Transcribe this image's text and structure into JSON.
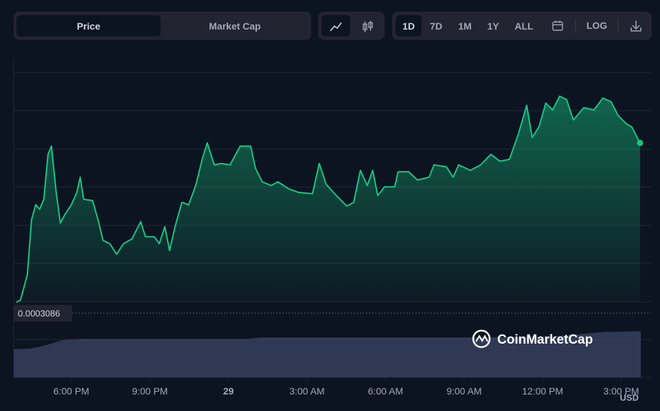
{
  "toolbar": {
    "tabs": [
      "Price",
      "Market Cap"
    ],
    "ranges": [
      "1D",
      "7D",
      "1M",
      "1Y",
      "ALL"
    ],
    "log_button": "LOG"
  },
  "chart_data": {
    "type": "line",
    "color": "#16c784",
    "x": [
      15.9,
      16.06,
      16.32,
      16.48,
      16.64,
      16.79,
      16.95,
      17.11,
      17.24,
      17.42,
      17.58,
      17.76,
      18.0,
      18.21,
      18.34,
      18.47,
      18.81,
      19.02,
      19.21,
      19.47,
      19.73,
      19.99,
      20.31,
      20.65,
      20.83,
      21.17,
      21.36,
      21.57,
      21.75,
      21.96,
      22.22,
      22.48,
      22.75,
      23.01,
      23.19,
      23.46,
      23.72,
      24.06,
      24.45,
      24.85,
      25.03,
      25.29,
      25.63,
      25.89,
      26.29,
      26.68,
      27.21,
      27.47,
      27.73,
      28.12,
      28.52,
      28.78,
      29.04,
      29.3,
      29.51,
      29.7,
      29.96,
      30.35,
      30.48,
      30.88,
      31.22,
      31.66,
      31.85,
      32.32,
      32.58,
      32.79,
      33.24,
      33.63,
      34.02,
      34.37,
      34.73,
      35.07,
      35.39,
      35.6,
      35.86,
      36.12,
      36.38,
      36.65,
      36.91,
      37.17,
      37.57,
      37.96,
      38.3,
      38.61,
      38.88,
      39.19,
      39.4,
      39.72
    ],
    "values": [
      0.000311,
      0.0003115,
      0.000317,
      0.000329,
      0.0003323,
      0.0003313,
      0.0003335,
      0.0003433,
      0.0003451,
      0.000335,
      0.0003283,
      0.0003302,
      0.0003323,
      0.000335,
      0.0003383,
      0.0003335,
      0.0003332,
      0.000329,
      0.0003245,
      0.0003238,
      0.0003215,
      0.0003238,
      0.0003248,
      0.0003286,
      0.0003253,
      0.0003253,
      0.0003238,
      0.0003275,
      0.0003223,
      0.0003275,
      0.0003328,
      0.0003323,
      0.0003365,
      0.0003425,
      0.0003458,
      0.000341,
      0.0003413,
      0.000341,
      0.0003451,
      0.0003451,
      0.0003403,
      0.0003373,
      0.0003365,
      0.0003373,
      0.0003358,
      0.000335,
      0.0003347,
      0.0003413,
      0.0003368,
      0.0003343,
      0.000332,
      0.0003328,
      0.0003398,
      0.0003365,
      0.0003398,
      0.0003343,
      0.0003362,
      0.0003362,
      0.0003395,
      0.0003395,
      0.0003377,
      0.0003383,
      0.000341,
      0.0003406,
      0.0003383,
      0.000341,
      0.0003398,
      0.000341,
      0.0003433,
      0.0003418,
      0.0003422,
      0.0003477,
      0.000354,
      0.000347,
      0.0003493,
      0.0003545,
      0.000353,
      0.000356,
      0.0003553,
      0.0003508,
      0.0003535,
      0.000353,
      0.0003556,
      0.0003548,
      0.0003518,
      0.00035,
      0.0003493,
      0.0003458
    ],
    "xlim": [
      15.8,
      40.14
    ],
    "ylim": [
      0.0002946,
      0.0003638
    ],
    "xticks": [
      {
        "value": 18,
        "label": "6:00 PM"
      },
      {
        "value": 21,
        "label": "9:00 PM"
      },
      {
        "value": 24,
        "label": "29"
      },
      {
        "value": 27,
        "label": "3:00 AM"
      },
      {
        "value": 30,
        "label": "6:00 AM"
      },
      {
        "value": 33,
        "label": "9:00 AM"
      },
      {
        "value": 36,
        "label": "12:00 PM"
      },
      {
        "value": 39,
        "label": "3:00 PM"
      }
    ],
    "ref_value": 0.0003086,
    "currency": "USD",
    "watermark": "CoinMarketCap"
  }
}
